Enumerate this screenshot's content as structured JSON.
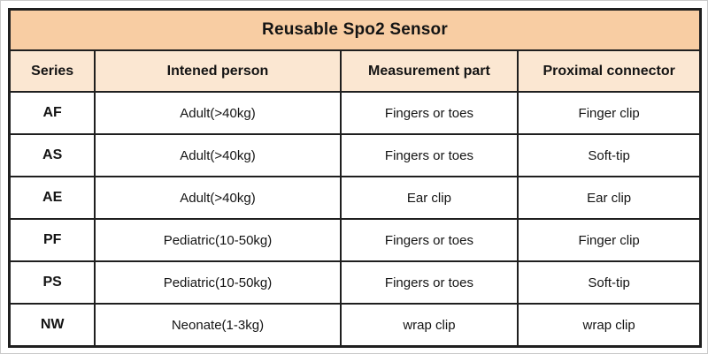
{
  "table": {
    "title": "Reusable Spo2 Sensor",
    "columns": [
      "Series",
      "Intened person",
      "Measurement part",
      "Proximal connector"
    ],
    "rows": [
      [
        "AF",
        "Adult(>40kg)",
        "Fingers or toes",
        "Finger clip"
      ],
      [
        "AS",
        "Adult(>40kg)",
        "Fingers or toes",
        "Soft-tip"
      ],
      [
        "AE",
        "Adult(>40kg)",
        "Ear clip",
        "Ear clip"
      ],
      [
        "PF",
        "Pediatric(10-50kg)",
        "Fingers or toes",
        "Finger clip"
      ],
      [
        "PS",
        "Pediatric(10-50kg)",
        "Fingers or toes",
        "Soft-tip"
      ],
      [
        "NW",
        "Neonate(1-3kg)",
        "wrap clip",
        "wrap clip"
      ]
    ]
  },
  "colors": {
    "title_background": "#f8cda3",
    "header_background": "#fbe7d2",
    "row_background": "#ffffff",
    "border": "#1f1f1f",
    "text": "#141414"
  }
}
